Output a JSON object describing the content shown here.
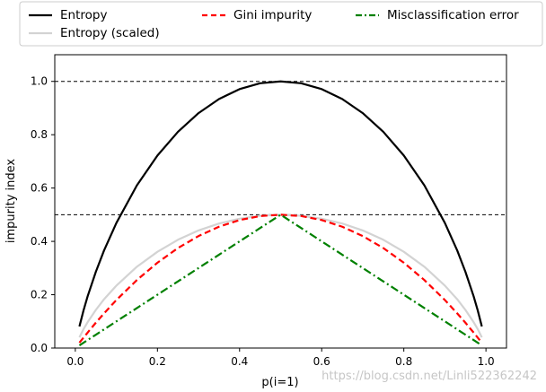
{
  "chart_data": {
    "type": "line",
    "title": "",
    "xlabel": "p(i=1)",
    "ylabel": "impurity index",
    "xlim": [
      -0.05,
      1.05
    ],
    "ylim": [
      0.0,
      1.1
    ],
    "xticks": [
      0.0,
      0.2,
      0.4,
      0.6,
      0.8,
      1.0
    ],
    "xtick_labels": [
      "0.0",
      "0.2",
      "0.4",
      "0.6",
      "0.8",
      "1.0"
    ],
    "yticks": [
      0.0,
      0.2,
      0.4,
      0.6,
      0.8,
      1.0
    ],
    "ytick_labels": [
      "0.0",
      "0.2",
      "0.4",
      "0.6",
      "0.8",
      "1.0"
    ],
    "grid": false,
    "legend_position": "top, above the axes",
    "hlines": [
      1.0,
      0.5
    ],
    "hline_color": "#000000",
    "hline_style": "dashed",
    "x": [
      0.01,
      0.02,
      0.03,
      0.05,
      0.07,
      0.1,
      0.15,
      0.2,
      0.25,
      0.3,
      0.35,
      0.4,
      0.45,
      0.5,
      0.55,
      0.6,
      0.65,
      0.7,
      0.75,
      0.8,
      0.85,
      0.9,
      0.93,
      0.95,
      0.97,
      0.98,
      0.99
    ],
    "series": [
      {
        "name": "Entropy",
        "color": "#000000",
        "style": "solid",
        "values": [
          0.081,
          0.141,
          0.194,
          0.286,
          0.366,
          0.469,
          0.61,
          0.722,
          0.811,
          0.881,
          0.934,
          0.971,
          0.993,
          1.0,
          0.993,
          0.971,
          0.934,
          0.881,
          0.811,
          0.722,
          0.61,
          0.469,
          0.366,
          0.286,
          0.194,
          0.141,
          0.081
        ]
      },
      {
        "name": "Entropy (scaled)",
        "color": "#d3d3d3",
        "style": "solid",
        "values": [
          0.04,
          0.071,
          0.097,
          0.143,
          0.183,
          0.234,
          0.305,
          0.361,
          0.406,
          0.441,
          0.467,
          0.485,
          0.496,
          0.5,
          0.496,
          0.485,
          0.467,
          0.441,
          0.406,
          0.361,
          0.305,
          0.234,
          0.183,
          0.143,
          0.097,
          0.071,
          0.04
        ]
      },
      {
        "name": "Gini impurity",
        "color": "#ff0000",
        "style": "dashed",
        "values": [
          0.02,
          0.039,
          0.058,
          0.095,
          0.13,
          0.18,
          0.255,
          0.32,
          0.375,
          0.42,
          0.455,
          0.48,
          0.495,
          0.5,
          0.495,
          0.48,
          0.455,
          0.42,
          0.375,
          0.32,
          0.255,
          0.18,
          0.13,
          0.095,
          0.058,
          0.039,
          0.02
        ]
      },
      {
        "name": "Misclassification error",
        "color": "#008000",
        "style": "dashdot",
        "values": [
          0.01,
          0.02,
          0.03,
          0.05,
          0.07,
          0.1,
          0.15,
          0.2,
          0.25,
          0.3,
          0.35,
          0.4,
          0.45,
          0.5,
          0.45,
          0.4,
          0.35,
          0.3,
          0.25,
          0.2,
          0.15,
          0.1,
          0.07,
          0.05,
          0.03,
          0.02,
          0.01
        ]
      }
    ]
  },
  "watermark": "https://blog.csdn.net/Linli522362242"
}
